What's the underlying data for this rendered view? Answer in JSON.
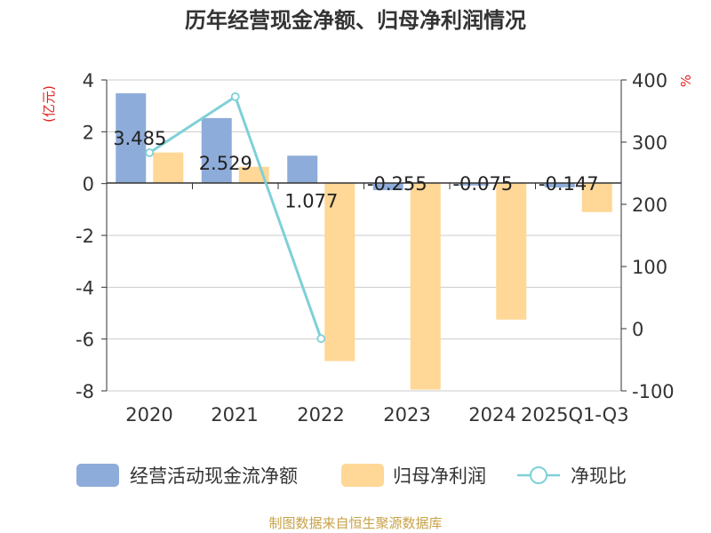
{
  "chart_data": {
    "type": "bar+line",
    "title": "历年经营现金净额、归母净利润情况",
    "left_axis_label": "(亿元)",
    "right_axis_label": "%",
    "categories": [
      "2020",
      "2021",
      "2022",
      "2023",
      "2024",
      "2025Q1-Q3"
    ],
    "left_axis": {
      "min": -8,
      "max": 4,
      "ticks": [
        4,
        2,
        0,
        -2,
        -4,
        -6,
        -8
      ]
    },
    "right_axis": {
      "min": -100,
      "max": 400,
      "ticks": [
        400,
        300,
        200,
        100,
        0,
        -100
      ]
    },
    "series": [
      {
        "name": "经营活动现金流净额",
        "type": "bar",
        "axis": "left",
        "color": "#8eacd9",
        "values": [
          3.485,
          2.529,
          1.077,
          -0.255,
          -0.075,
          -0.147
        ],
        "labels": [
          "3.485",
          "2.529",
          "1.077",
          "-0.255",
          "-0.075",
          "-0.147"
        ]
      },
      {
        "name": "归母净利润",
        "type": "bar",
        "axis": "left",
        "color": "#ffd796",
        "values": [
          1.2,
          0.65,
          -6.85,
          -7.95,
          -5.25,
          -1.1
        ]
      },
      {
        "name": "净现比",
        "type": "line",
        "axis": "right",
        "color": "#7fd0d8",
        "values": [
          283,
          373,
          -16,
          null,
          null,
          null
        ]
      }
    ],
    "legend": [
      {
        "label": "经营活动现金流净额",
        "kind": "bar",
        "color": "#8eacd9"
      },
      {
        "label": "归母净利润",
        "kind": "bar",
        "color": "#ffd796"
      },
      {
        "label": "净现比",
        "kind": "line",
        "color": "#7fd0d8"
      }
    ],
    "source": "制图数据来自恒生聚源数据库"
  }
}
